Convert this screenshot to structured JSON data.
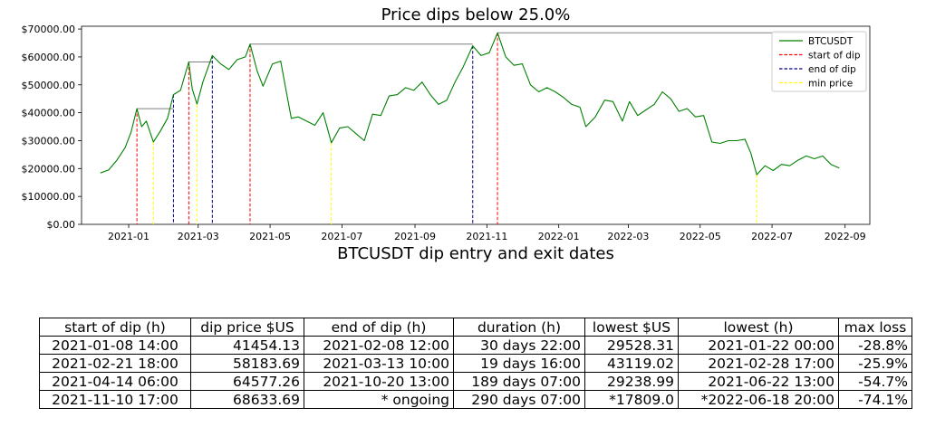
{
  "chart_data": {
    "type": "line",
    "title": "Price dips below 25.0%",
    "xlabel": "BTCUSDT dip entry and exit dates",
    "ylabel": "",
    "ylim": [
      0,
      71000
    ],
    "xlim": [
      "2020-11-22",
      "2022-09-22"
    ],
    "y_ticks": [
      "$0.00",
      "$10000.00",
      "$20000.00",
      "$30000.00",
      "$40000.00",
      "$50000.00",
      "$60000.00",
      "$70000.00"
    ],
    "x_ticks": [
      "2021-01",
      "2021-03",
      "2021-05",
      "2021-07",
      "2021-09",
      "2021-11",
      "2022-01",
      "2022-03",
      "2022-05",
      "2022-07",
      "2022-09"
    ],
    "grid": false,
    "legend_position": "top-right",
    "legend": [
      {
        "label": "BTCUSDT",
        "color": "#008000",
        "style": "solid"
      },
      {
        "label": "start of dip",
        "color": "#ff0000",
        "style": "dashed"
      },
      {
        "label": "end of dip",
        "color": "#00008b",
        "style": "dashed"
      },
      {
        "label": "min price",
        "color": "#ffff00",
        "style": "dashed"
      }
    ],
    "series": [
      {
        "name": "BTCUSDT",
        "color": "#008000",
        "x": [
          "2020-12-08",
          "2020-12-15",
          "2020-12-22",
          "2020-12-29",
          "2021-01-03",
          "2021-01-08",
          "2021-01-12",
          "2021-01-16",
          "2021-01-22",
          "2021-01-28",
          "2021-02-03",
          "2021-02-08",
          "2021-02-14",
          "2021-02-21",
          "2021-02-24",
          "2021-02-28",
          "2021-03-05",
          "2021-03-13",
          "2021-03-20",
          "2021-03-27",
          "2021-04-03",
          "2021-04-10",
          "2021-04-14",
          "2021-04-20",
          "2021-04-25",
          "2021-05-03",
          "2021-05-10",
          "2021-05-15",
          "2021-05-19",
          "2021-05-25",
          "2021-06-01",
          "2021-06-08",
          "2021-06-15",
          "2021-06-22",
          "2021-06-29",
          "2021-07-06",
          "2021-07-13",
          "2021-07-20",
          "2021-07-27",
          "2021-08-03",
          "2021-08-10",
          "2021-08-17",
          "2021-08-24",
          "2021-08-31",
          "2021-09-07",
          "2021-09-14",
          "2021-09-21",
          "2021-09-28",
          "2021-10-05",
          "2021-10-12",
          "2021-10-20",
          "2021-10-27",
          "2021-11-03",
          "2021-11-10",
          "2021-11-17",
          "2021-11-24",
          "2021-12-01",
          "2021-12-08",
          "2021-12-15",
          "2021-12-22",
          "2021-12-29",
          "2022-01-05",
          "2022-01-12",
          "2022-01-19",
          "2022-01-24",
          "2022-02-01",
          "2022-02-09",
          "2022-02-16",
          "2022-02-24",
          "2022-03-02",
          "2022-03-09",
          "2022-03-16",
          "2022-03-23",
          "2022-03-30",
          "2022-04-06",
          "2022-04-13",
          "2022-04-20",
          "2022-04-27",
          "2022-05-04",
          "2022-05-11",
          "2022-05-18",
          "2022-05-25",
          "2022-06-01",
          "2022-06-08",
          "2022-06-13",
          "2022-06-18",
          "2022-06-25",
          "2022-07-02",
          "2022-07-09",
          "2022-07-16",
          "2022-07-23",
          "2022-07-30",
          "2022-08-06",
          "2022-08-13",
          "2022-08-20",
          "2022-08-27"
        ],
        "values": [
          18400,
          19500,
          23000,
          27500,
          33000,
          41454,
          35000,
          37000,
          29528,
          33500,
          38000,
          46500,
          48000,
          58184,
          48500,
          43119,
          51000,
          60500,
          57500,
          55500,
          59000,
          60000,
          64577,
          55000,
          49500,
          57500,
          58500,
          47000,
          38000,
          38500,
          37000,
          35500,
          40000,
          29239,
          34500,
          35000,
          32500,
          30000,
          39500,
          39000,
          46000,
          46500,
          49000,
          48000,
          51000,
          46500,
          43000,
          44500,
          51000,
          56500,
          64000,
          60500,
          61500,
          68634,
          60000,
          57000,
          57500,
          50000,
          47500,
          49000,
          47500,
          45500,
          43000,
          42000,
          35000,
          38500,
          44500,
          44000,
          37000,
          44000,
          39000,
          41000,
          43000,
          47500,
          45000,
          40500,
          41500,
          38500,
          39000,
          29500,
          29000,
          30000,
          30000,
          30500,
          25500,
          17809,
          21000,
          19300,
          21500,
          21000,
          23000,
          24500,
          23500,
          24500,
          21500,
          20200
        ]
      }
    ],
    "hlines": [
      {
        "y": 41454.13,
        "from": "2021-01-08",
        "to": "2021-02-08"
      },
      {
        "y": 58183.69,
        "from": "2021-02-21",
        "to": "2021-03-13"
      },
      {
        "y": 64577.26,
        "from": "2021-04-14",
        "to": "2021-10-20"
      },
      {
        "y": 68633.69,
        "from": "2021-11-10",
        "to": "2022-09-01"
      }
    ],
    "vlines": [
      {
        "kind": "start of dip",
        "x": "2021-01-08",
        "y": 41454
      },
      {
        "kind": "min price",
        "x": "2021-01-22",
        "y": 29528
      },
      {
        "kind": "end of dip",
        "x": "2021-02-08",
        "y": 46500
      },
      {
        "kind": "start of dip",
        "x": "2021-02-21",
        "y": 58184
      },
      {
        "kind": "min price",
        "x": "2021-02-28",
        "y": 43119
      },
      {
        "kind": "end of dip",
        "x": "2021-03-13",
        "y": 60500
      },
      {
        "kind": "start of dip",
        "x": "2021-04-14",
        "y": 64577
      },
      {
        "kind": "min price",
        "x": "2021-06-22",
        "y": 29239
      },
      {
        "kind": "end of dip",
        "x": "2021-10-20",
        "y": 64000
      },
      {
        "kind": "start of dip",
        "x": "2021-11-10",
        "y": 68634
      },
      {
        "kind": "min price",
        "x": "2022-06-18",
        "y": 17809
      }
    ]
  },
  "table": {
    "headers": [
      "start of dip (h)",
      "dip price $US",
      "end of dip (h)",
      "duration (h)",
      "lowest $US",
      "lowest (h)",
      "max loss"
    ],
    "rows": [
      [
        "2021-01-08 14:00",
        "41454.13",
        "2021-02-08 12:00",
        "30 days 22:00",
        "29528.31",
        "2021-01-22 00:00",
        "-28.8%"
      ],
      [
        "2021-02-21 18:00",
        "58183.69",
        "2021-03-13 10:00",
        "19 days 16:00",
        "43119.02",
        "2021-02-28 17:00",
        "-25.9%"
      ],
      [
        "2021-04-14 06:00",
        "64577.26",
        "2021-10-20 13:00",
        "189 days 07:00",
        "29238.99",
        "2021-06-22 13:00",
        "-54.7%"
      ],
      [
        "2021-11-10 17:00",
        "68633.69",
        "* ongoing",
        "290 days 07:00",
        "*17809.0",
        "*2022-06-18 20:00",
        "-74.1%"
      ]
    ]
  }
}
